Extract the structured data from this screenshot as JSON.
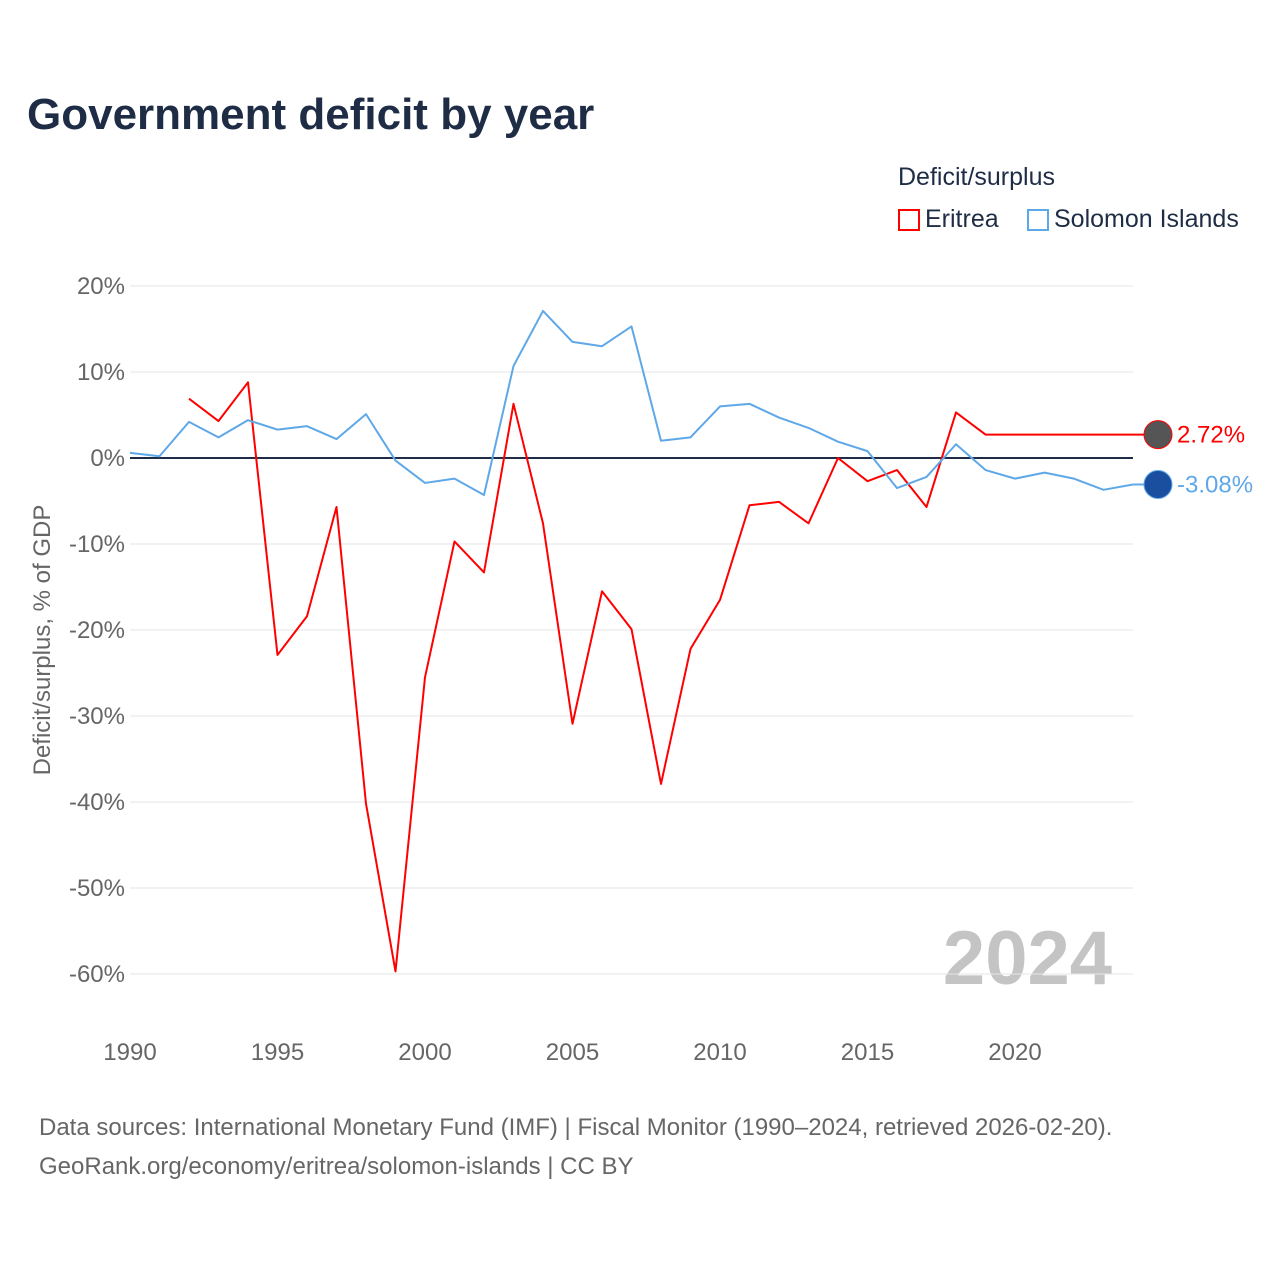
{
  "title": "Government deficit by year",
  "legend": {
    "title": "Deficit/surplus",
    "items": [
      {
        "label": "Eritrea",
        "color": "#ff0000"
      },
      {
        "label": "Solomon Islands",
        "color": "#5fa8e8"
      }
    ]
  },
  "year_watermark": "2024",
  "footer": {
    "line1": "Data sources: International Monetary Fund (IMF) | Fiscal Monitor (1990–2024, retrieved 2026-02-20).",
    "line2": "GeoRank.org/economy/eritrea/solomon-islands | CC BY"
  },
  "chart_data": {
    "type": "line",
    "title": "Government deficit by year",
    "xlabel": "",
    "ylabel": "Deficit/surplus, % of GDP",
    "xlim": [
      1990,
      2024
    ],
    "ylim": [
      -60,
      20
    ],
    "xticks": [
      1990,
      1995,
      2000,
      2005,
      2010,
      2015,
      2020
    ],
    "yticks": [
      20,
      10,
      0,
      -10,
      -20,
      -30,
      -40,
      -50,
      -60
    ],
    "ytick_labels": [
      "20%",
      "10%",
      "0%",
      "-10%",
      "-20%",
      "-30%",
      "-40%",
      "-50%",
      "-60%"
    ],
    "series": [
      {
        "name": "Eritrea",
        "color": "#ff0000",
        "end_label": "2.72%",
        "x": [
          1992,
          1993,
          1994,
          1995,
          1996,
          1997,
          1998,
          1999,
          2000,
          2001,
          2002,
          2003,
          2004,
          2005,
          2006,
          2007,
          2008,
          2009,
          2010,
          2011,
          2012,
          2013,
          2014,
          2015,
          2016,
          2017,
          2018,
          2019,
          2024
        ],
        "values": [
          6.9,
          4.3,
          8.8,
          -22.9,
          -18.4,
          -5.7,
          -40.2,
          -59.7,
          -25.5,
          -9.7,
          -13.3,
          6.3,
          -7.6,
          -30.9,
          -15.5,
          -19.9,
          -37.9,
          -22.2,
          -16.5,
          -5.5,
          -5.1,
          -7.6,
          0.0,
          -2.7,
          -1.4,
          -5.7,
          5.3,
          2.72,
          2.72
        ]
      },
      {
        "name": "Solomon Islands",
        "color": "#5fa8e8",
        "end_label": "-3.08%",
        "x": [
          1990,
          1991,
          1992,
          1993,
          1994,
          1995,
          1996,
          1997,
          1998,
          1999,
          2000,
          2001,
          2002,
          2003,
          2004,
          2005,
          2006,
          2007,
          2008,
          2009,
          2010,
          2011,
          2012,
          2013,
          2014,
          2015,
          2016,
          2017,
          2018,
          2019,
          2020,
          2021,
          2022,
          2023,
          2024
        ],
        "values": [
          0.6,
          0.2,
          4.2,
          2.4,
          4.4,
          3.3,
          3.7,
          2.2,
          5.1,
          -0.3,
          -2.9,
          -2.4,
          -4.3,
          10.7,
          17.1,
          13.5,
          13.0,
          15.3,
          2.0,
          2.4,
          6.0,
          6.3,
          4.7,
          3.5,
          1.9,
          0.8,
          -3.5,
          -2.2,
          1.6,
          -1.4,
          -2.4,
          -1.7,
          -2.4,
          -3.7,
          -3.08
        ]
      }
    ]
  }
}
